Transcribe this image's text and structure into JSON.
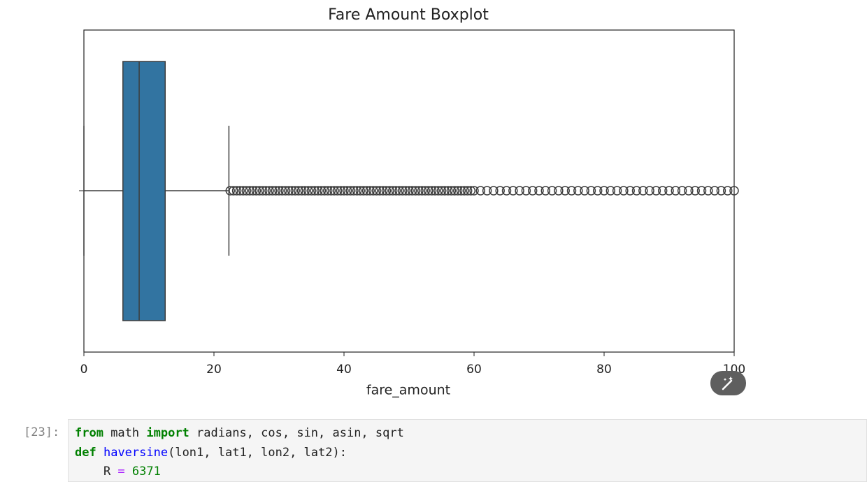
{
  "chart_data": {
    "type": "box",
    "title": "Fare Amount Boxplot",
    "xlabel": "fare_amount",
    "xlim": [
      0,
      100
    ],
    "xticks": [
      0,
      20,
      40,
      60,
      80,
      100
    ],
    "whisker_low": 0,
    "q1": 6,
    "median": 8.5,
    "q3": 12.5,
    "whisker_high": 22.3,
    "outliers": [
      22.5,
      23,
      23.5,
      24,
      24.5,
      25,
      25.5,
      26,
      26.5,
      27,
      27.5,
      28,
      28.5,
      29,
      29.5,
      30,
      30.5,
      31,
      31.5,
      32,
      32.5,
      33,
      33.5,
      34,
      34.5,
      35,
      35.5,
      36,
      36.5,
      37,
      37.5,
      38,
      38.5,
      39,
      39.5,
      40,
      40.5,
      41,
      41.5,
      42,
      42.5,
      43,
      43.5,
      44,
      44.5,
      45,
      45.5,
      46,
      46.5,
      47,
      47.5,
      48,
      48.5,
      49,
      49.5,
      50,
      50.5,
      51,
      51.5,
      52,
      52.5,
      53,
      53.5,
      54,
      54.5,
      55,
      55.5,
      56,
      56.5,
      57,
      57.5,
      58,
      58.5,
      59,
      59.5,
      60,
      61,
      62,
      63,
      64,
      65,
      66,
      67,
      68,
      69,
      70,
      71,
      72,
      73,
      74,
      75,
      76,
      77,
      78,
      79,
      80,
      81,
      82,
      83,
      84,
      85,
      86,
      87,
      88,
      89,
      90,
      91,
      92,
      93,
      94,
      95,
      96,
      97,
      98,
      99,
      100
    ],
    "color": "#3274a1"
  },
  "cell": {
    "prompt": "[23]:",
    "lines": [
      [
        {
          "text": "from",
          "color": "#008000",
          "bold": true
        },
        {
          "text": " math ",
          "color": "#212121"
        },
        {
          "text": "import",
          "color": "#008000",
          "bold": true
        },
        {
          "text": " radians, cos, sin, asin, sqrt",
          "color": "#212121"
        }
      ],
      [
        {
          "text": "def",
          "color": "#008000",
          "bold": true
        },
        {
          "text": " ",
          "color": "#212121"
        },
        {
          "text": "haversine",
          "color": "#0000ff"
        },
        {
          "text": "(lon1, lat1, lon2, lat2):",
          "color": "#212121"
        }
      ],
      [
        {
          "text": "    R ",
          "color": "#212121"
        },
        {
          "text": "=",
          "color": "#aa22ff"
        },
        {
          "text": " ",
          "color": "#212121"
        },
        {
          "text": "6371",
          "color": "#008000"
        }
      ]
    ]
  }
}
